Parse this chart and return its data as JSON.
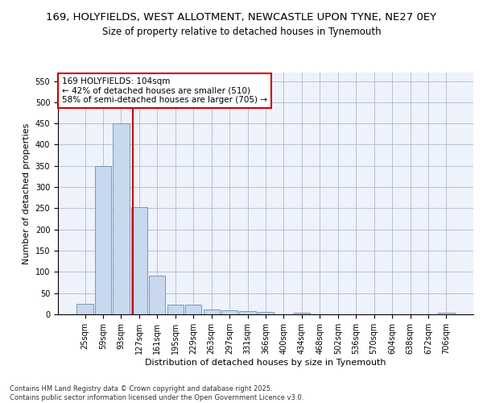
{
  "title1": "169, HOLYFIELDS, WEST ALLOTMENT, NEWCASTLE UPON TYNE, NE27 0EY",
  "title2": "Size of property relative to detached houses in Tynemouth",
  "xlabel": "Distribution of detached houses by size in Tynemouth",
  "ylabel": "Number of detached properties",
  "bar_color": "#c8d8ee",
  "bar_edge_color": "#7799bb",
  "categories": [
    "25sqm",
    "59sqm",
    "93sqm",
    "127sqm",
    "161sqm",
    "195sqm",
    "229sqm",
    "263sqm",
    "297sqm",
    "331sqm",
    "366sqm",
    "400sqm",
    "434sqm",
    "468sqm",
    "502sqm",
    "536sqm",
    "570sqm",
    "604sqm",
    "638sqm",
    "672sqm",
    "706sqm"
  ],
  "values": [
    25,
    350,
    450,
    252,
    92,
    22,
    22,
    12,
    10,
    7,
    5,
    0,
    3,
    0,
    0,
    0,
    0,
    0,
    0,
    0,
    3
  ],
  "vline_x": 2.67,
  "vline_color": "#cc0000",
  "annotation_text": "169 HOLYFIELDS: 104sqm\n← 42% of detached houses are smaller (510)\n58% of semi-detached houses are larger (705) →",
  "annotation_box_color": "#ffffff",
  "annotation_box_edge": "#cc0000",
  "ylim": [
    0,
    570
  ],
  "yticks": [
    0,
    50,
    100,
    150,
    200,
    250,
    300,
    350,
    400,
    450,
    500,
    550
  ],
  "footnote": "Contains HM Land Registry data © Crown copyright and database right 2025.\nContains public sector information licensed under the Open Government Licence v3.0.",
  "bg_color": "#eef2fa",
  "grid_color": "#b0b8d0",
  "title_fontsize": 9.5,
  "subtitle_fontsize": 8.5,
  "axis_fontsize": 8,
  "tick_fontsize": 7,
  "annot_fontsize": 7.5
}
